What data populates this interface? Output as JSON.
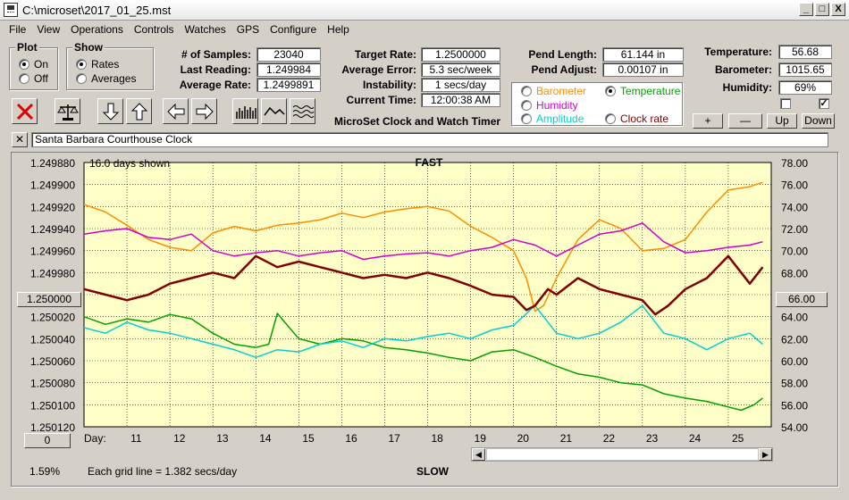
{
  "window": {
    "title": "C:\\microset\\2017_01_25.mst",
    "min_label": "_",
    "max_label": "□",
    "close_label": "X"
  },
  "menu": [
    "File",
    "View",
    "Operations",
    "Controls",
    "Watches",
    "GPS",
    "Configure",
    "Help"
  ],
  "plot_group": {
    "title": "Plot",
    "options": [
      "On",
      "Off"
    ],
    "selected": "On"
  },
  "show_group": {
    "title": "Show",
    "options": [
      "Rates",
      "Averages"
    ],
    "selected": "Rates"
  },
  "stats": {
    "samples_label": "# of Samples:",
    "samples": "23040",
    "last_reading_label": "Last Reading:",
    "last_reading": "1.249984",
    "average_rate_label": "Average Rate:",
    "average_rate": "1.2499891",
    "target_rate_label": "Target Rate:",
    "target_rate": "1.2500000",
    "average_error_label": "Average Error:",
    "average_error": "5.3 sec/week",
    "instability_label": "Instability:",
    "instability": "1 secs/day",
    "current_time_label": "Current Time:",
    "current_time": "12:00:38 AM",
    "pend_length_label": "Pend Length:",
    "pend_length": "61.144 in",
    "pend_adjust_label": "Pend Adjust:",
    "pend_adjust": "0.00107 in",
    "temperature_label": "Temperature:",
    "temperature": "56.68",
    "barometer_label": "Barometer:",
    "barometer": "1015.65",
    "humidity_label": "Humidity:",
    "humidity": "69%"
  },
  "app_caption": "MicroSet Clock and Watch Timer",
  "sensor_options": [
    {
      "label": "Barometer",
      "color": "#ff8c00"
    },
    {
      "label": "Temperature",
      "color": "#00a000"
    },
    {
      "label": "Humidity",
      "color": "#d000d0"
    },
    {
      "label": "Amplitude",
      "color": "#00d0d0"
    },
    {
      "label": "Clock rate",
      "color": "#800000"
    }
  ],
  "sensor_selected": "Temperature",
  "scale_buttons": {
    "plus": "+",
    "minus": "—",
    "up": "Up",
    "down": "Down"
  },
  "checkbox_right_mark": "✓",
  "clock_name": "Santa Barbara Courthouse Clock",
  "close_clock_label": "✕",
  "chart": {
    "days_shown": "16.0 days shown",
    "top_label": "FAST",
    "bottom_label": "SLOW",
    "grid_note": "Each grid line = 1.382 secs/day",
    "percent": "1.59%",
    "left_center_button": "1.250000",
    "right_center_button": "66.00",
    "bottom_left_button": "0",
    "day_label": "Day:"
  },
  "chart_data": {
    "type": "line",
    "left_axis": {
      "ticks": [
        "1.249880",
        "1.249900",
        "1.249920",
        "1.249940",
        "1.249960",
        "1.249980",
        "1.250000",
        "1.250020",
        "1.250040",
        "1.250060",
        "1.250080",
        "1.250100",
        "1.250120"
      ],
      "reversed": true
    },
    "right_axis": {
      "ticks": [
        "78.00",
        "76.00",
        "74.00",
        "72.00",
        "70.00",
        "68.00",
        "66.00",
        "64.00",
        "62.00",
        "60.00",
        "58.00",
        "56.00",
        "54.00"
      ],
      "range": [
        54,
        78
      ]
    },
    "x_ticks": [
      "11",
      "12",
      "13",
      "14",
      "15",
      "16",
      "17",
      "18",
      "19",
      "20",
      "21",
      "22",
      "23",
      "24",
      "25"
    ],
    "x_range": [
      10,
      26
    ],
    "series": [
      {
        "name": "Barometer",
        "color": "#ff8c00",
        "x": [
          10,
          10.5,
          11,
          11.5,
          12,
          12.5,
          13,
          13.5,
          14,
          14.5,
          15,
          15.5,
          16,
          16.5,
          17,
          17.5,
          18,
          18.5,
          19,
          19.5,
          20,
          20.3,
          20.5,
          20.7,
          21,
          21.5,
          22,
          22.5,
          23,
          23.5,
          24,
          24.5,
          25,
          25.5,
          25.8
        ],
        "y": [
          74.2,
          73.5,
          72.3,
          71.0,
          70.3,
          70.0,
          71.6,
          72.2,
          71.8,
          72.3,
          72.5,
          72.8,
          73.4,
          73.0,
          73.5,
          73.8,
          74.0,
          73.6,
          72.2,
          71.2,
          70.0,
          67.5,
          64.5,
          65.0,
          67.5,
          71.0,
          72.8,
          72.0,
          70.0,
          70.2,
          71.0,
          73.5,
          75.5,
          75.8,
          76.2
        ]
      },
      {
        "name": "Temperature",
        "color": "#00a000",
        "x": [
          10,
          10.5,
          11,
          11.5,
          12,
          12.5,
          13,
          13.5,
          14,
          14.3,
          14.5,
          15,
          15.5,
          16,
          16.5,
          17,
          17.5,
          18,
          18.5,
          19,
          19.5,
          20,
          20.5,
          21,
          21.5,
          22,
          22.5,
          23,
          23.5,
          24,
          24.5,
          25,
          25.3,
          25.6,
          25.8
        ],
        "y": [
          64.0,
          63.3,
          63.8,
          63.5,
          64.2,
          63.8,
          62.5,
          61.5,
          61.2,
          61.5,
          64.3,
          62.0,
          61.5,
          62.0,
          61.8,
          61.2,
          61.0,
          60.7,
          60.3,
          60.0,
          60.8,
          61.0,
          60.3,
          59.5,
          58.8,
          58.5,
          58.0,
          57.8,
          57.0,
          56.6,
          56.3,
          55.8,
          55.5,
          56.0,
          56.6
        ]
      },
      {
        "name": "Humidity",
        "color": "#d000d0",
        "x": [
          10,
          10.5,
          11,
          11.5,
          12,
          12.5,
          13,
          13.5,
          14,
          14.5,
          15,
          15.5,
          16,
          16.5,
          17,
          17.5,
          18,
          18.5,
          19,
          19.5,
          20,
          20.5,
          21,
          21.5,
          22,
          22.5,
          23,
          23.5,
          24,
          24.5,
          25,
          25.5,
          25.8
        ],
        "y": [
          71.5,
          71.8,
          72.0,
          71.2,
          71.0,
          71.5,
          70.0,
          69.5,
          69.8,
          70.0,
          69.5,
          69.8,
          70.0,
          69.2,
          69.5,
          69.7,
          69.8,
          69.5,
          70.0,
          70.3,
          71.0,
          70.5,
          69.5,
          70.5,
          71.5,
          71.8,
          72.5,
          70.8,
          69.8,
          70.0,
          70.3,
          70.5,
          70.8
        ]
      },
      {
        "name": "Amplitude",
        "color": "#00d0d0",
        "x": [
          10,
          10.5,
          11,
          11.5,
          12,
          12.5,
          13,
          13.5,
          14,
          14.5,
          15,
          15.5,
          16,
          16.5,
          17,
          17.5,
          18,
          18.5,
          19,
          19.5,
          20,
          20.5,
          21,
          21.5,
          22,
          22.5,
          23,
          23.5,
          24,
          24.5,
          25,
          25.5,
          25.8
        ],
        "y": [
          63.0,
          62.5,
          63.5,
          62.8,
          62.5,
          62.0,
          61.5,
          61.0,
          60.3,
          61.0,
          60.8,
          61.5,
          61.8,
          61.2,
          62.0,
          61.8,
          62.2,
          62.5,
          62.0,
          62.8,
          63.2,
          65.0,
          62.5,
          62.0,
          62.5,
          63.5,
          65.0,
          62.5,
          62.0,
          61.0,
          62.0,
          62.5,
          61.5
        ]
      },
      {
        "name": "Clock rate",
        "color": "#800000",
        "x": [
          10,
          10.5,
          11,
          11.5,
          12,
          12.5,
          13,
          13.5,
          14,
          14.5,
          15,
          15.5,
          16,
          16.5,
          17,
          17.5,
          18,
          18.5,
          19,
          19.5,
          20,
          20.3,
          20.5,
          20.8,
          21,
          21.5,
          22,
          22.5,
          23,
          23.3,
          23.6,
          24,
          24.5,
          25,
          25.5,
          25.8
        ],
        "y": [
          66.5,
          66.0,
          65.5,
          66.0,
          67.0,
          67.5,
          68.0,
          67.5,
          69.5,
          68.5,
          69.0,
          68.5,
          68.0,
          67.5,
          67.8,
          67.5,
          68.0,
          67.5,
          66.8,
          66.0,
          65.8,
          64.6,
          65.0,
          66.5,
          66.0,
          67.5,
          66.5,
          66.0,
          65.5,
          64.2,
          65.0,
          66.5,
          67.5,
          69.5,
          67.0,
          68.5
        ]
      }
    ]
  }
}
